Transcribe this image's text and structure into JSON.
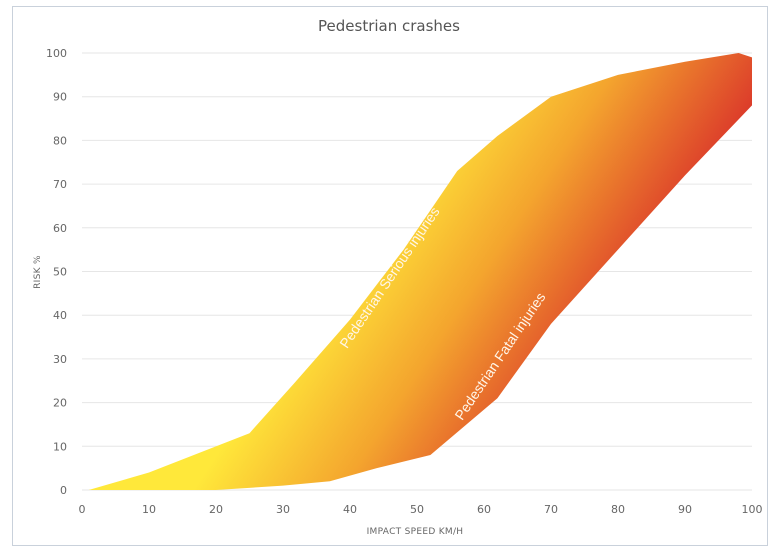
{
  "chart_data": {
    "type": "area",
    "title": "Pedestrian crashes",
    "xlabel": "IMPACT SPEED KM/H",
    "ylabel": "RISK %",
    "xlim": [
      0,
      100
    ],
    "ylim": [
      0,
      100
    ],
    "x_ticks": [
      "0",
      "10",
      "20",
      "30",
      "40",
      "50",
      "60",
      "70",
      "80",
      "90",
      "100"
    ],
    "y_ticks": [
      "0",
      "10",
      "20",
      "30",
      "40",
      "50",
      "60",
      "70",
      "80",
      "90",
      "100"
    ],
    "grid": true,
    "series": [
      {
        "name": "Pedestrian Serious injuries",
        "x": [
          1,
          10,
          25,
          32,
          40,
          48,
          56,
          62,
          70,
          80,
          90,
          98,
          100
        ],
        "y": [
          0,
          4,
          13,
          25,
          39,
          55,
          73,
          81,
          90,
          95,
          98,
          100,
          99
        ]
      },
      {
        "name": "Pedestrian Fatal injuries",
        "x": [
          1,
          10,
          20,
          30,
          37,
          44,
          52,
          62,
          70,
          80,
          90,
          100
        ],
        "y": [
          0,
          0,
          0,
          1,
          2,
          5,
          8,
          21,
          38,
          55,
          72,
          88
        ]
      }
    ],
    "colors": {
      "light": "#ffe83a",
      "mid": "#f4a52e",
      "dark": "#d92f2a"
    }
  }
}
